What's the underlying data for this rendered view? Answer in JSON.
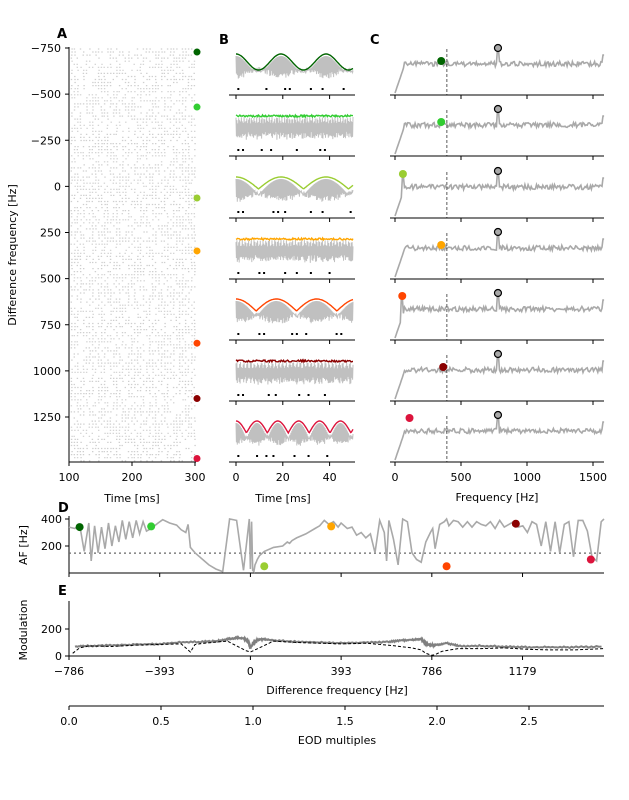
{
  "chart_data": [
    {
      "panel": "A",
      "type": "scatter",
      "title": "",
      "xlabel": "Time [ms]",
      "ylabel": "Difference frequency [Hz]",
      "xlim": [
        100,
        300
      ],
      "ylim": [
        -750,
        1500
      ],
      "y_inverted": true,
      "xticks": [
        "100",
        "200",
        "300"
      ],
      "yticks": [
        "−750",
        "−500",
        "−250",
        "0",
        "250",
        "500",
        "750",
        "1000",
        "1250"
      ],
      "description": "spike raster of light gray dots per difference frequency",
      "markers": [
        {
          "df": -728,
          "color": "#006400"
        },
        {
          "df": -430,
          "color": "#32cd32"
        },
        {
          "df": 63,
          "color": "#9acd32"
        },
        {
          "df": 350,
          "color": "#ffa500"
        },
        {
          "df": 850,
          "color": "#ff4500"
        },
        {
          "df": 1150,
          "color": "#8b0000"
        },
        {
          "df": 1475,
          "color": "#dc143c"
        }
      ]
    },
    {
      "panel": "B",
      "type": "line",
      "xlabel": "Time [ms]",
      "xlim": [
        0,
        50
      ],
      "xticks": [
        "0",
        "20",
        "40"
      ],
      "rows": [
        {
          "color": "#006400",
          "envelope": "sine",
          "beats": 2.6,
          "spikes_ms": [
            1,
            13,
            21,
            23,
            32,
            37,
            46
          ]
        },
        {
          "color": "#32cd32",
          "envelope": "jagged",
          "beats": 14,
          "spikes_ms": [
            1,
            3,
            11,
            15,
            26,
            36,
            38
          ]
        },
        {
          "color": "#9acd32",
          "envelope": "arched",
          "beats": 2.6,
          "spikes_ms": [
            1,
            3,
            16,
            18,
            21,
            32,
            37,
            49
          ]
        },
        {
          "color": "#ffa500",
          "envelope": "jagged",
          "beats": 12,
          "spikes_ms": [
            1,
            10,
            12,
            21,
            26,
            32,
            40
          ]
        },
        {
          "color": "#ff4500",
          "envelope": "arched",
          "beats": 2.9,
          "spikes_ms": [
            1,
            10,
            12,
            24,
            26,
            30,
            43,
            45
          ]
        },
        {
          "color": "#8b0000",
          "envelope": "jagged",
          "beats": 10,
          "spikes_ms": [
            1,
            3,
            14,
            17,
            27,
            31,
            38
          ]
        },
        {
          "color": "#dc143c",
          "envelope": "arched",
          "beats": 5.6,
          "spikes_ms": [
            1,
            9,
            13,
            16,
            25,
            31,
            39
          ]
        }
      ]
    },
    {
      "panel": "C",
      "type": "line",
      "xlabel": "Frequency [Hz]",
      "xlim": [
        -40,
        1600
      ],
      "xticks": [
        "0",
        "500",
        "1000",
        "1500"
      ],
      "eodf_dashed_line_hz": 393,
      "gray_peak_hz": 780,
      "rows": [
        {
          "color": "#006400",
          "marker_hz": 350
        },
        {
          "color": "#32cd32",
          "marker_hz": 350
        },
        {
          "color": "#9acd32",
          "marker_hz": 60
        },
        {
          "color": "#ffa500",
          "marker_hz": 350
        },
        {
          "color": "#ff4500",
          "marker_hz": 55
        },
        {
          "color": "#8b0000",
          "marker_hz": 365
        },
        {
          "color": "#dc143c",
          "marker_hz": 110
        }
      ]
    },
    {
      "panel": "D",
      "type": "line",
      "ylabel": "AF [Hz]",
      "xlim": [
        -786,
        1532
      ],
      "ylim": [
        0,
        420
      ],
      "yticks": [
        "200",
        "400"
      ],
      "threshold_dotted": 147,
      "series": [
        {
          "name": "AF",
          "color": "#a9a9a9",
          "x": [
            -786,
            -760,
            -740,
            -720,
            -700,
            -690,
            -675,
            -660,
            -645,
            -630,
            -615,
            -600,
            -585,
            -570,
            -555,
            -540,
            -525,
            -510,
            -495,
            -480,
            -465,
            -450,
            -430,
            -400,
            -380,
            -350,
            -320,
            -300,
            -280,
            -270,
            -260,
            -240,
            -220,
            -200,
            -180,
            -150,
            -120,
            -90,
            -60,
            -30,
            -5,
            0,
            5,
            10,
            15,
            20,
            25,
            30,
            40,
            60,
            100,
            140,
            160,
            170,
            180,
            200,
            240,
            280,
            300,
            320,
            340,
            360,
            380,
            393,
            420,
            440,
            460,
            480,
            500,
            520,
            540,
            560,
            580,
            590,
            600,
            620,
            640,
            660,
            680,
            700,
            720,
            740,
            760,
            780,
            790,
            800,
            820,
            840,
            850,
            860,
            880,
            900,
            920,
            940,
            960,
            980,
            1000,
            1020,
            1040,
            1060,
            1080,
            1100,
            1120,
            1140,
            1160,
            1180,
            1200,
            1220,
            1240,
            1260,
            1280,
            1300,
            1320,
            1340,
            1360,
            1380,
            1400,
            1420,
            1440,
            1460,
            1480,
            1500,
            1520,
            1532
          ],
          "y": [
            340,
            330,
            360,
            160,
            370,
            90,
            350,
            150,
            340,
            180,
            370,
            200,
            350,
            230,
            390,
            250,
            380,
            260,
            390,
            290,
            380,
            310,
            330,
            370,
            395,
            370,
            355,
            320,
            300,
            360,
            190,
            150,
            120,
            90,
            60,
            30,
            10,
            400,
            390,
            20,
            400,
            30,
            380,
            20,
            10,
            60,
            80,
            100,
            130,
            160,
            190,
            200,
            230,
            220,
            240,
            260,
            290,
            330,
            350,
            390,
            360,
            380,
            340,
            370,
            330,
            340,
            280,
            300,
            260,
            290,
            150,
            390,
            300,
            90,
            390,
            250,
            60,
            400,
            380,
            150,
            100,
            80,
            230,
            300,
            330,
            180,
            360,
            380,
            400,
            350,
            390,
            380,
            340,
            380,
            340,
            380,
            360,
            350,
            380,
            330,
            390,
            340,
            360,
            380,
            340,
            350,
            300,
            380,
            360,
            200,
            380,
            160,
            380,
            150,
            360,
            380,
            120,
            390,
            390,
            310,
            120,
            90,
            380,
            400
          ]
        }
      ],
      "markers": [
        {
          "x": -740,
          "y": 340,
          "color": "#006400"
        },
        {
          "x": -430,
          "y": 345,
          "color": "#32cd32"
        },
        {
          "x": 60,
          "y": 50,
          "color": "#9acd32"
        },
        {
          "x": 350,
          "y": 345,
          "color": "#ffa500"
        },
        {
          "x": 850,
          "y": 50,
          "color": "#ff4500"
        },
        {
          "x": 1150,
          "y": 365,
          "color": "#8b0000"
        },
        {
          "x": 1475,
          "y": 100,
          "color": "#dc143c"
        }
      ]
    },
    {
      "panel": "E",
      "type": "line",
      "xlabel": "Difference frequency [Hz]",
      "ylabel": "Modulation",
      "xlim": [
        -786,
        1532
      ],
      "ylim": [
        0,
        400
      ],
      "xticks": [
        "−786",
        "−393",
        "0",
        "393",
        "786",
        "1179"
      ],
      "yticks": [
        "0",
        "200"
      ],
      "series": [
        {
          "name": "modulation",
          "color": "#808080",
          "style": "solid",
          "x": [
            -760,
            -700,
            -600,
            -500,
            -400,
            -300,
            -200,
            -150,
            -100,
            -60,
            -30,
            -10,
            0,
            10,
            30,
            60,
            100,
            200,
            300,
            400,
            500,
            600,
            650,
            700,
            740,
            760,
            786,
            800,
            850,
            900,
            1000,
            1100,
            1200,
            1300,
            1400,
            1532
          ],
          "y": [
            70,
            75,
            80,
            85,
            90,
            100,
            105,
            110,
            125,
            135,
            130,
            110,
            60,
            90,
            120,
            125,
            115,
            105,
            100,
            95,
            100,
            105,
            115,
            120,
            125,
            90,
            80,
            80,
            95,
            75,
            75,
            70,
            65,
            65,
            65,
            70
          ]
        },
        {
          "name": "reference",
          "color": "#000000",
          "style": "dashed",
          "x": [
            -770,
            -740,
            -700,
            -600,
            -500,
            -400,
            -300,
            -260,
            -240,
            -200,
            -100,
            -20,
            0,
            20,
            100,
            200,
            300,
            400,
            500,
            600,
            700,
            740,
            760,
            786,
            800,
            830,
            900,
            1000,
            1100,
            1200,
            1300,
            1400,
            1532
          ],
          "y": [
            20,
            60,
            75,
            70,
            80,
            85,
            90,
            30,
            85,
            95,
            110,
            40,
            30,
            45,
            110,
            100,
            95,
            90,
            95,
            80,
            60,
            45,
            20,
            5,
            10,
            35,
            55,
            55,
            60,
            50,
            45,
            45,
            55
          ]
        }
      ]
    },
    {
      "panel": "bottom-axis",
      "type": "line",
      "xlabel": "EOD multiples",
      "xlim": [
        0,
        2.9
      ],
      "xticks": [
        "0.0",
        "0.5",
        "1.0",
        "1.5",
        "2.0",
        "2.5"
      ]
    }
  ],
  "panel_labels": {
    "a": "A",
    "b": "B",
    "c": "C",
    "d": "D",
    "e": "E"
  },
  "colors": {
    "gray_line": "#a9a9a9",
    "raster_dot": "#cfcfcf",
    "beat_gray": "#c0c0c0"
  }
}
